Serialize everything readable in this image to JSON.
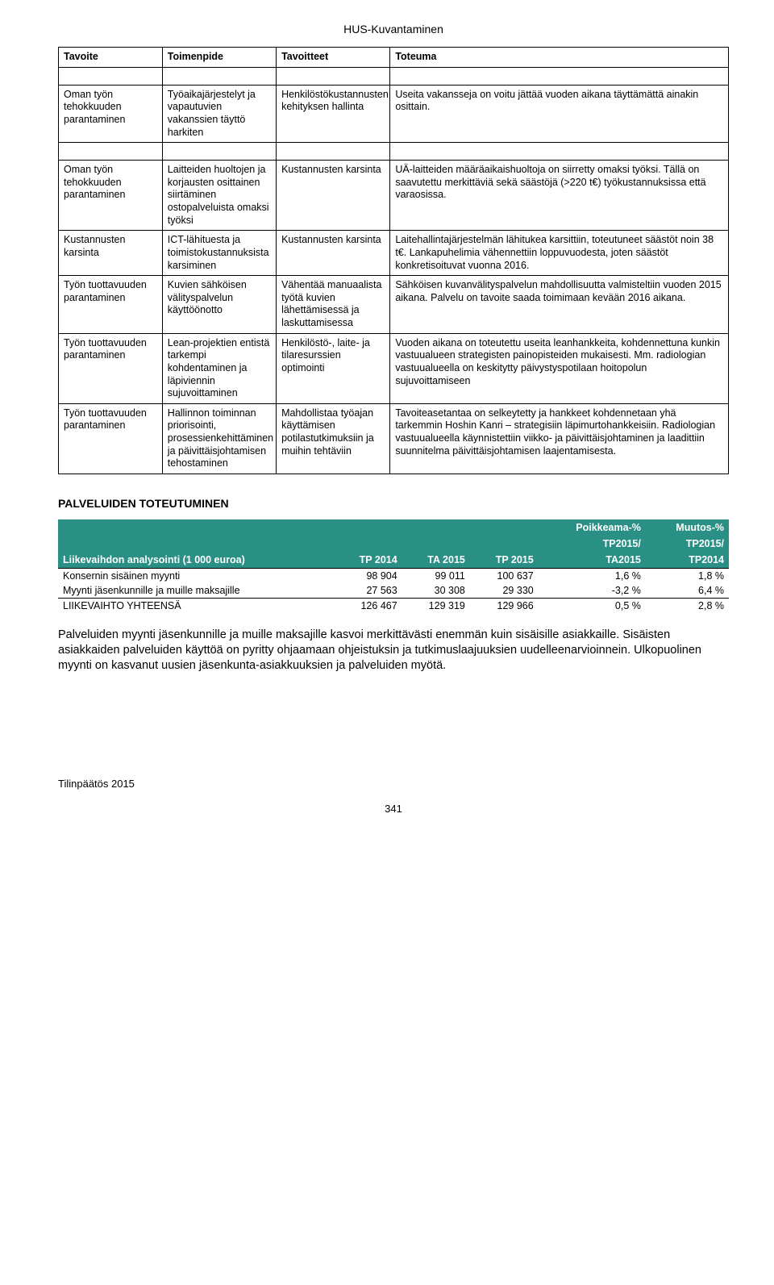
{
  "doc_header": "HUS-Kuvantaminen",
  "matrix": {
    "headers": [
      "Tavoite",
      "Toimenpide",
      "Tavoitteet",
      "Toteuma"
    ],
    "rows": [
      {
        "c1": "Oman työn tehokkuuden parantaminen",
        "c2": "Työaikajärjestelyt ja vapautuvien vakanssien täyttö harkiten",
        "c3": "Henkilöstökustannusten kehityksen hallinta",
        "c4": "Useita vakansseja on voitu jättää vuoden aikana täyttämättä ainakin osittain."
      },
      {
        "c1": "Oman työn tehokkuuden parantaminen",
        "c2": "Laitteiden huoltojen ja korjausten osittainen siirtäminen ostopalveluista omaksi työksi",
        "c3": "Kustannusten karsinta",
        "c4": "UÄ-laitteiden määräaikaishuoltoja on siirretty omaksi työksi. Tällä on saavutettu merkittäviä sekä säästöjä (>220 t€) työkustannuksissa että varaosissa."
      },
      {
        "c1": "Kustannusten karsinta",
        "c2": "ICT-lähituesta ja toimistokustannuksista karsiminen",
        "c3": "Kustannusten karsinta",
        "c4": "Laitehallintajärjestelmän lähitukea karsittiin, toteutuneet säästöt noin 38 t€. Lankapuhelimia vähennettiin loppuvuodesta, joten säästöt konkretisoituvat vuonna 2016."
      },
      {
        "c1": "Työn tuottavuuden parantaminen",
        "c2": "Kuvien sähköisen välityspalvelun käyttöönotto",
        "c3": "Vähentää manuaalista työtä kuvien lähettämisessä ja laskuttamisessa",
        "c4": "Sähköisen kuvanvälityspalvelun mahdollisuutta valmisteltiin vuoden 2015 aikana. Palvelu on tavoite saada toimimaan kevään 2016 aikana."
      },
      {
        "c1": "Työn tuottavuuden parantaminen",
        "c2": "Lean-projektien entistä tarkempi kohdentaminen ja läpiviennin sujuvoittaminen",
        "c3": "Henkilöstö-, laite- ja tilaresurssien optimointi",
        "c4": "Vuoden aikana on toteutettu useita leanhankkeita, kohdennettuna kunkin vastuualueen strategisten painopisteiden mukaisesti. Mm. radiologian vastuualueella on keskitytty päivystyspotilaan hoitopolun sujuvoittamiseen"
      },
      {
        "c1": "Työn tuottavuuden parantaminen",
        "c2": "Hallinnon toiminnan priorisointi, prosessienkehittäminen ja päivittäisjohtamisen tehostaminen",
        "c3": "Mahdollistaa työajan käyttämisen potilastutkimuksiin ja muihin tehtäviin",
        "c4": "Tavoiteasetantaa on selkeytetty ja hankkeet kohdennetaan yhä tarkemmin Hoshin Kanri – strategisiin läpimurtohankkeisiin. Radiologian vastuualueella käynnistettiin viikko- ja päivittäisjohtaminen ja laadittiin suunnitelma päivittäisjohtamisen laajentamisesta."
      }
    ]
  },
  "section_title": "PALVELUIDEN TOTEUTUMINEN",
  "data_table": {
    "super_headers": [
      "",
      "",
      "",
      "",
      "Poikkeama-%",
      "Muutos-%"
    ],
    "sub_headers_upper": [
      "",
      "",
      "",
      "",
      "TP2015/",
      "TP2015/"
    ],
    "headers": [
      "Liikevaihdon analysointi (1 000 euroa)",
      "TP 2014",
      "TA 2015",
      "TP 2015",
      "TA2015",
      "TP2014"
    ],
    "rows": [
      {
        "label": "Konsernin sisäinen myynti",
        "v1": "98 904",
        "v2": "99 011",
        "v3": "100 637",
        "v4": "1,6 %",
        "v5": "1,8 %"
      },
      {
        "label": "Myynti jäsenkunnille ja muille maksajille",
        "v1": "27 563",
        "v2": "30 308",
        "v3": "29 330",
        "v4": "-3,2 %",
        "v5": "6,4 %"
      }
    ],
    "total": {
      "label": "LIIKEVAIHTO YHTEENSÄ",
      "v1": "126 467",
      "v2": "129 319",
      "v3": "129 966",
      "v4": "0,5 %",
      "v5": "2,8 %"
    }
  },
  "paragraph": "Palveluiden myynti jäsenkunnille ja muille maksajille kasvoi merkittävästi enemmän kuin sisäisille asiakkaille. Sisäisten asiakkaiden palveluiden käyttöä on pyritty ohjaamaan ohjeistuksin ja tutkimuslaajuuksien uudelleenarvioinnein. Ulkopuolinen myynti on kasvanut uusien jäsenkunta-asiakkuuksien ja palveluiden myötä.",
  "footer_left": "Tilinpäätös 2015",
  "footer_center": "341",
  "colors": {
    "teal": "#2a8f85"
  }
}
